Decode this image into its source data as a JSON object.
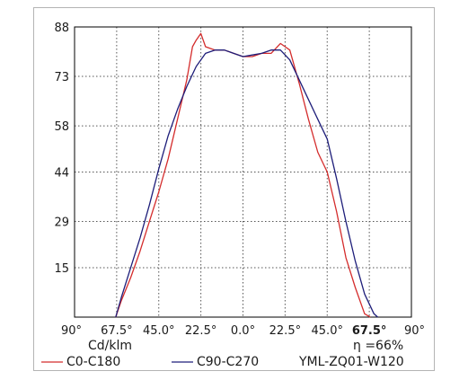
{
  "chart_data": {
    "type": "line",
    "chart_kind": "polar-curve-cartesian",
    "title": "",
    "xlabel": "",
    "ylabel": "",
    "unit_label": "Cd/klm",
    "efficiency_label": "η =66%",
    "model_label": "YML-ZQ01-W120",
    "x_range": [
      -90,
      90
    ],
    "ylim": [
      0,
      88
    ],
    "x_tick_labels": [
      "90°",
      "67.5°",
      "45.0°",
      "22.5°",
      "0.0°",
      "22.5°",
      "45.0°",
      "67.5°",
      "90°"
    ],
    "x_tick_values": [
      -90,
      -67.5,
      -45,
      -22.5,
      0,
      22.5,
      45,
      67.5,
      90
    ],
    "bold_tick_index": 7,
    "y_tick_labels": [
      "88",
      "73",
      "58",
      "44",
      "29",
      "15"
    ],
    "y_tick_values": [
      88,
      73,
      58,
      44,
      29,
      15
    ],
    "grid": true,
    "grid_style": "dotted",
    "legend_position": "bottom",
    "colors": {
      "series_red": "#d42c2c",
      "series_navy": "#1e1e7a",
      "grid": "#555555",
      "axis": "#000000"
    },
    "series": [
      {
        "name": "C0-C180",
        "color": "#d42c2c",
        "x": [
          -68,
          -65,
          -60,
          -55,
          -50,
          -45,
          -40,
          -35,
          -30,
          -27,
          -25,
          -22.5,
          -20,
          -15,
          -10,
          -5,
          0,
          5,
          10,
          15,
          20,
          22.5,
          25,
          30,
          35,
          40,
          45,
          50,
          55,
          60,
          65,
          68
        ],
        "y": [
          0,
          5,
          12,
          20,
          29,
          38,
          48,
          60,
          72,
          82,
          84,
          86,
          82,
          81,
          81,
          80,
          79,
          79,
          80,
          80,
          83,
          82,
          81,
          71,
          60,
          50,
          44,
          32,
          18,
          9,
          1,
          0
        ]
      },
      {
        "name": "C90-C270",
        "color": "#1e1e7a",
        "x": [
          -68,
          -65,
          -60,
          -55,
          -50,
          -45,
          -40,
          -35,
          -30,
          -25,
          -20,
          -15,
          -10,
          -5,
          0,
          5,
          10,
          15,
          20,
          25,
          30,
          35,
          40,
          45,
          50,
          55,
          60,
          65,
          70,
          72
        ],
        "y": [
          0,
          6,
          15,
          24,
          34,
          45,
          55,
          63,
          70,
          76,
          80,
          81,
          81,
          80,
          79,
          79.5,
          80,
          81,
          81,
          78,
          72,
          66,
          60,
          54,
          42,
          29,
          17,
          7,
          1,
          0
        ]
      }
    ]
  }
}
